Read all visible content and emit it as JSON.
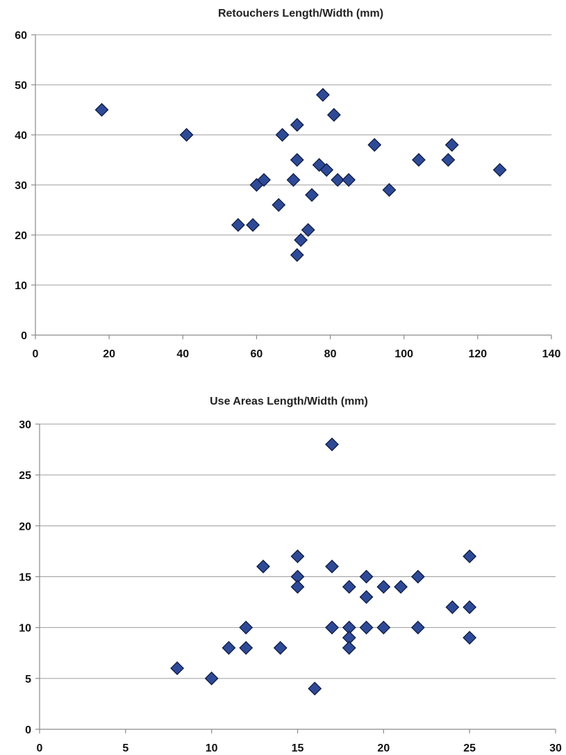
{
  "chart_data": [
    {
      "type": "scatter",
      "title": "Retouchers Length/Width (mm)",
      "xlabel": "",
      "ylabel": "",
      "xlim": [
        0,
        140
      ],
      "ylim": [
        0,
        60
      ],
      "x_ticks": [
        0,
        20,
        40,
        60,
        80,
        100,
        120,
        140
      ],
      "y_ticks": [
        0,
        10,
        20,
        30,
        40,
        50,
        60
      ],
      "grid": "horizontal",
      "legend": "none",
      "marker": "diamond",
      "marker_color": "#2e4a97",
      "points": [
        {
          "x": 18,
          "y": 45
        },
        {
          "x": 41,
          "y": 40
        },
        {
          "x": 55,
          "y": 22
        },
        {
          "x": 59,
          "y": 22
        },
        {
          "x": 60,
          "y": 30
        },
        {
          "x": 62,
          "y": 31
        },
        {
          "x": 66,
          "y": 26
        },
        {
          "x": 67,
          "y": 40
        },
        {
          "x": 70,
          "y": 31
        },
        {
          "x": 71,
          "y": 42
        },
        {
          "x": 71,
          "y": 35
        },
        {
          "x": 71,
          "y": 16
        },
        {
          "x": 72,
          "y": 19
        },
        {
          "x": 74,
          "y": 21
        },
        {
          "x": 75,
          "y": 28
        },
        {
          "x": 77,
          "y": 34
        },
        {
          "x": 78,
          "y": 48
        },
        {
          "x": 79,
          "y": 33
        },
        {
          "x": 81,
          "y": 44
        },
        {
          "x": 82,
          "y": 31
        },
        {
          "x": 85,
          "y": 31
        },
        {
          "x": 92,
          "y": 38
        },
        {
          "x": 96,
          "y": 29
        },
        {
          "x": 104,
          "y": 35
        },
        {
          "x": 112,
          "y": 35
        },
        {
          "x": 113,
          "y": 38
        },
        {
          "x": 126,
          "y": 33
        }
      ]
    },
    {
      "type": "scatter",
      "title": "Use Areas Length/Width (mm)",
      "xlabel": "",
      "ylabel": "",
      "xlim": [
        0,
        30
      ],
      "ylim": [
        0,
        30
      ],
      "x_ticks": [
        0,
        5,
        10,
        15,
        20,
        25,
        30
      ],
      "y_ticks": [
        0,
        5,
        10,
        15,
        20,
        25,
        30
      ],
      "grid": "horizontal",
      "legend": "none",
      "marker": "diamond",
      "marker_color": "#2e4a97",
      "points": [
        {
          "x": 8,
          "y": 6
        },
        {
          "x": 10,
          "y": 5
        },
        {
          "x": 11,
          "y": 8
        },
        {
          "x": 12,
          "y": 8
        },
        {
          "x": 12,
          "y": 10
        },
        {
          "x": 13,
          "y": 16
        },
        {
          "x": 14,
          "y": 8
        },
        {
          "x": 15,
          "y": 17
        },
        {
          "x": 15,
          "y": 15
        },
        {
          "x": 15,
          "y": 14
        },
        {
          "x": 16,
          "y": 4
        },
        {
          "x": 17,
          "y": 28
        },
        {
          "x": 17,
          "y": 16
        },
        {
          "x": 17,
          "y": 10
        },
        {
          "x": 18,
          "y": 14
        },
        {
          "x": 18,
          "y": 10
        },
        {
          "x": 18,
          "y": 9
        },
        {
          "x": 18,
          "y": 8
        },
        {
          "x": 19,
          "y": 15
        },
        {
          "x": 19,
          "y": 13
        },
        {
          "x": 19,
          "y": 10
        },
        {
          "x": 20,
          "y": 14
        },
        {
          "x": 20,
          "y": 10
        },
        {
          "x": 21,
          "y": 14
        },
        {
          "x": 22,
          "y": 15
        },
        {
          "x": 22,
          "y": 10
        },
        {
          "x": 24,
          "y": 12
        },
        {
          "x": 25,
          "y": 17
        },
        {
          "x": 25,
          "y": 12
        },
        {
          "x": 25,
          "y": 9
        }
      ]
    }
  ]
}
